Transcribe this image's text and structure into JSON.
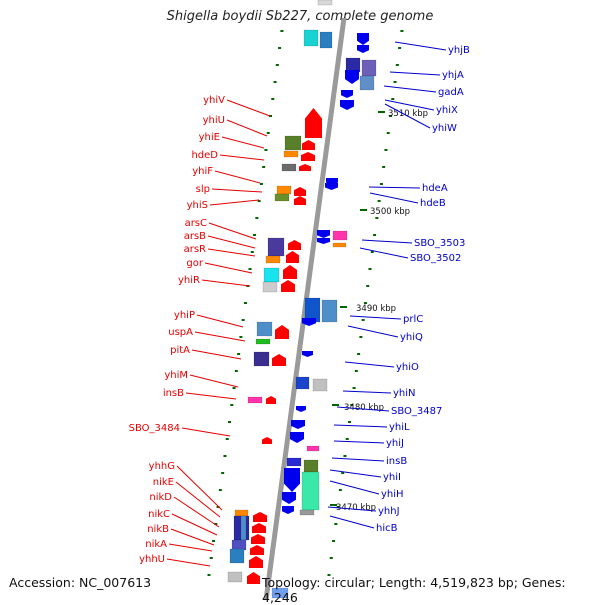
{
  "title": "Shigella boydii Sb227, complete genome",
  "footer": {
    "accession": "Accession: NC_007613",
    "stats": "Topology: circular; Length: 4,519,823 bp; Genes: 4,246"
  },
  "colors": {
    "left_label": "#e60000",
    "right_label": "#0000cc",
    "plus_gene": "#ff0000",
    "minus_gene": "#0000ee",
    "backbone": "#9a9a9a",
    "tick": "#006600"
  },
  "kbp_ticks": [
    "3510 kbp",
    "3500 kbp",
    "3490 kbp",
    "3480 kbp",
    "3470 kbp"
  ],
  "left_labels": [
    "yhiV",
    "yhiU",
    "yhiE",
    "hdeD",
    "yhiF",
    "slp",
    "yhiS",
    "arsC",
    "arsB",
    "arsR",
    "gor",
    "yhiR",
    "yhiP",
    "uspA",
    "pitA",
    "yhiM",
    "insB",
    "SBO_3484",
    "yhhG",
    "nikE",
    "nikD",
    "nikC",
    "nikB",
    "nikA",
    "yhhU"
  ],
  "right_labels": [
    "yhjB",
    "yhjA",
    "gadA",
    "yhiX",
    "yhiW",
    "hdeA",
    "hdeB",
    "SBO_3503",
    "SBO_3502",
    "prlC",
    "yhiQ",
    "yhiO",
    "yhiN",
    "SBO_3487",
    "yhiL",
    "yhiJ",
    "insB",
    "yhiI",
    "yhiH",
    "yhhJ",
    "hicB"
  ]
}
